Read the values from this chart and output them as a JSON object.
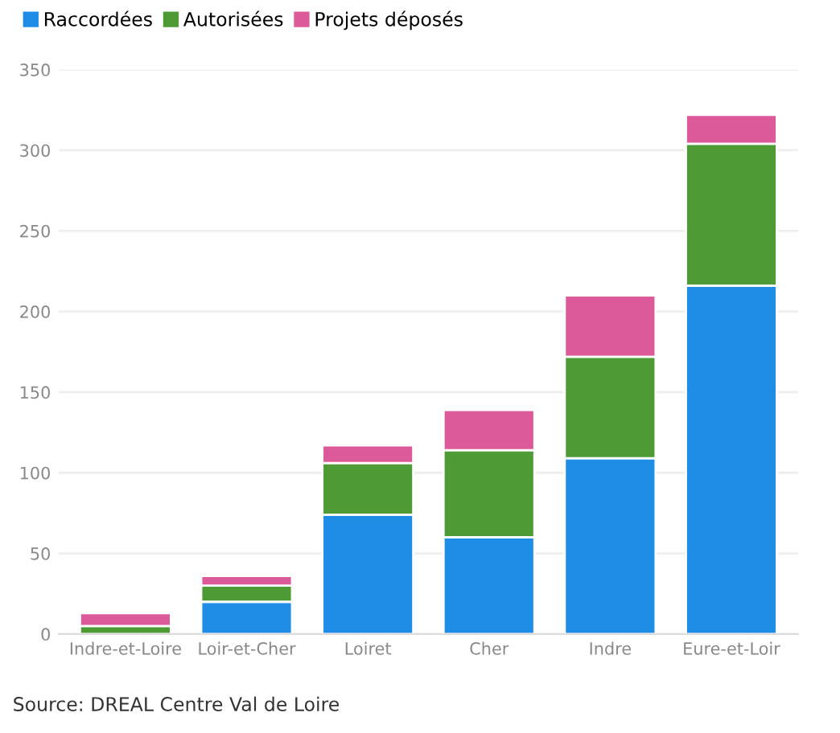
{
  "chart_data": {
    "type": "bar",
    "stacked": true,
    "categories": [
      "Indre-et-Loire",
      "Loir-et-Cher",
      "Loiret",
      "Cher",
      "Indre",
      "Eure-et-Loir"
    ],
    "series": [
      {
        "name": "Raccordées",
        "color": "#1f8ce6",
        "values": [
          0,
          20,
          74,
          60,
          109,
          216
        ]
      },
      {
        "name": "Autorisées",
        "color": "#4e9a35",
        "values": [
          5,
          10,
          32,
          54,
          63,
          88
        ]
      },
      {
        "name": "Projets déposés",
        "color": "#dc5a9a",
        "values": [
          8,
          6,
          11,
          25,
          38,
          18
        ]
      }
    ],
    "ylim": [
      0,
      350
    ],
    "yticks": [
      0,
      50,
      100,
      150,
      200,
      250,
      300,
      350
    ],
    "grid": "y",
    "legend": "top left",
    "annotations": [
      "Source: DREAL Centre Val de Loire"
    ]
  }
}
